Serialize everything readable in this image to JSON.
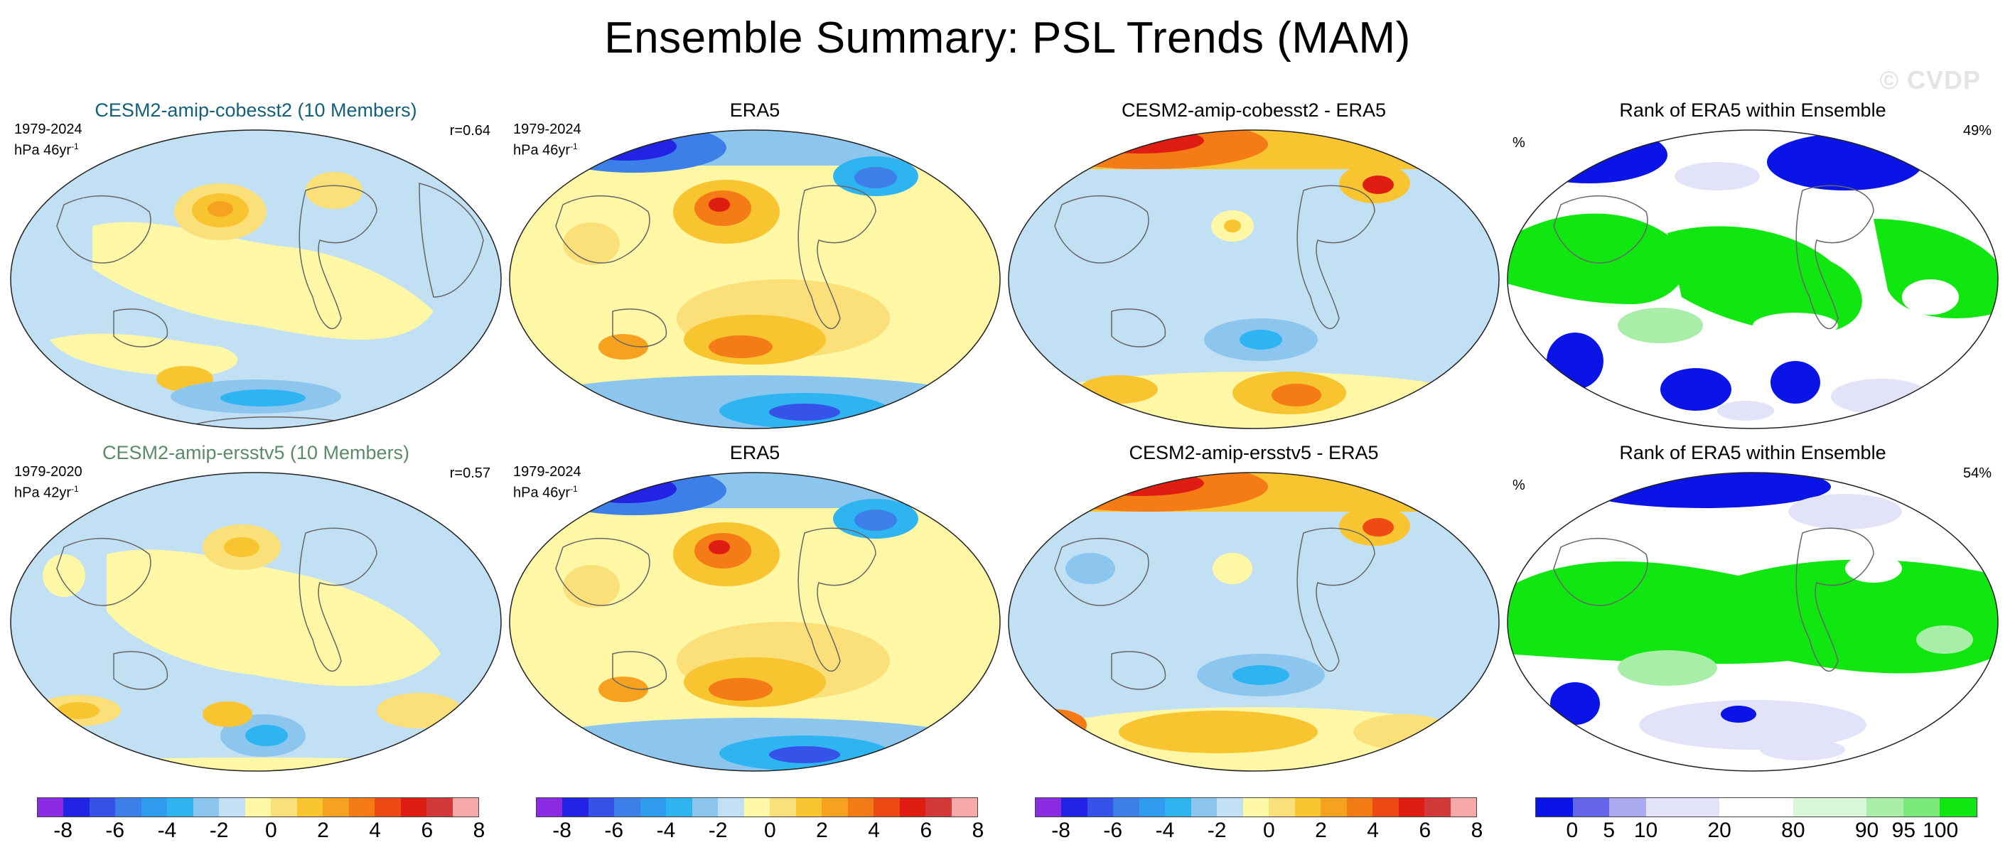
{
  "title": "Ensemble Summary: PSL Trends (MAM)",
  "watermark": "© CVDP",
  "rows": [
    {
      "model": {
        "title": "CESM2-amip-cobesst2 (10 Members)",
        "period": "1979-2024",
        "units_base": "hPa 46yr",
        "units_exp": "-1",
        "r": "r=0.64"
      },
      "obs": {
        "title": "ERA5",
        "period": "1979-2024",
        "units_base": "hPa 46yr",
        "units_exp": "-1"
      },
      "diff": {
        "title": "CESM2-amip-cobesst2 - ERA5"
      },
      "rank": {
        "title": "Rank of ERA5 within Ensemble",
        "unit": "%",
        "value": "49%"
      }
    },
    {
      "model": {
        "title": "CESM2-amip-ersstv5 (10 Members)",
        "period": "1979-2020",
        "units_base": "hPa 42yr",
        "units_exp": "-1",
        "r": "r=0.57"
      },
      "obs": {
        "title": "ERA5",
        "period": "1979-2024",
        "units_base": "hPa 46yr",
        "units_exp": "-1"
      },
      "diff": {
        "title": "CESM2-amip-ersstv5 - ERA5"
      },
      "rank": {
        "title": "Rank of ERA5 within Ensemble",
        "unit": "%",
        "value": "54%"
      }
    }
  ],
  "colorbars": {
    "trend_colors": [
      "#8a2be2",
      "#2323e6",
      "#3553e8",
      "#3c7fe8",
      "#2f9cef",
      "#2fb4f2",
      "#8cc6ee",
      "#c2e0f4",
      "#fdf7a6",
      "#fbe07a",
      "#f8c42f",
      "#f7a21e",
      "#f47b16",
      "#ee4a14",
      "#e01d12",
      "#d23a3a",
      "#f7aaa8"
    ],
    "trend_labels": [
      "-8",
      "-6",
      "-4",
      "-2",
      "0",
      "2",
      "4",
      "6",
      "8"
    ],
    "rank_colors": [
      "#0a14e6",
      "#6464e8",
      "#aaaaf0",
      "#e2e2f8",
      "#e2e2f8",
      "#ffffff",
      "#ffffff",
      "#d8f7d8",
      "#d8f7d8",
      "#a8eea8",
      "#7ae87a",
      "#10e610"
    ],
    "rank_labels": [
      "0",
      "5",
      "10",
      "20",
      "80",
      "90",
      "95",
      "100"
    ]
  }
}
